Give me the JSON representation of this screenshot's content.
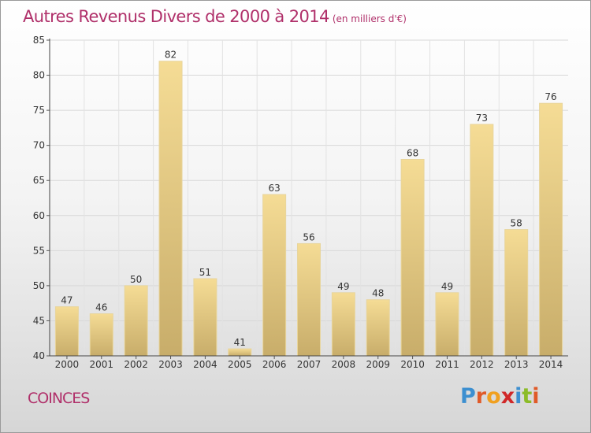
{
  "chart_data": {
    "type": "bar",
    "title": "Autres Revenus Divers de 2000 à 2014",
    "subtitle": "(en milliers d'€)",
    "categories": [
      "2000",
      "2001",
      "2002",
      "2003",
      "2004",
      "2005",
      "2006",
      "2007",
      "2008",
      "2009",
      "2010",
      "2011",
      "2012",
      "2013",
      "2014"
    ],
    "values": [
      47,
      46,
      50,
      82,
      51,
      41,
      63,
      56,
      49,
      48,
      68,
      49,
      73,
      58,
      76
    ],
    "ylim": [
      40,
      85
    ],
    "yticks": [
      40,
      45,
      50,
      55,
      60,
      65,
      70,
      75,
      80,
      85
    ],
    "grid": true,
    "bar_color_top": "#f5dc95",
    "bar_color_bottom": "#c8ad6a"
  },
  "footer": {
    "town": "COINCES",
    "logo_letters": [
      {
        "ch": "P",
        "color": "#3c8fd0"
      },
      {
        "ch": "r",
        "color": "#e05a28"
      },
      {
        "ch": "o",
        "color": "#f0a020"
      },
      {
        "ch": "x",
        "color": "#d02828"
      },
      {
        "ch": "i",
        "color": "#3c8fd0"
      },
      {
        "ch": "t",
        "color": "#8cbc28"
      },
      {
        "ch": "i",
        "color": "#e05a28"
      }
    ]
  }
}
